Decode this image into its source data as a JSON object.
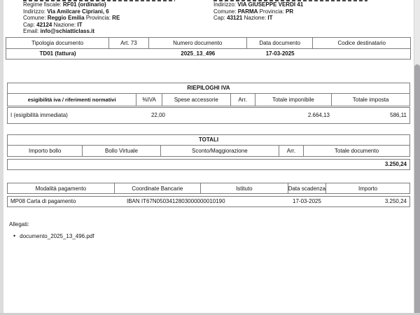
{
  "supplier": {
    "lines": [
      [
        {
          "t": "Regime fiscale: "
        },
        {
          "t": "RF01 (ordinario)",
          "b": true
        }
      ],
      [
        {
          "t": "Indirizzo: "
        },
        {
          "t": "Via Amilcare Cipriani, 6",
          "b": true
        }
      ],
      [
        {
          "t": "Comune: "
        },
        {
          "t": "Reggio Emilia",
          "b": true
        },
        {
          "t": " Provincia: "
        },
        {
          "t": "RE",
          "b": true
        }
      ],
      [
        {
          "t": "Cap: "
        },
        {
          "t": "42124",
          "b": true
        },
        {
          "t": " Nazione: "
        },
        {
          "t": "IT",
          "b": true
        }
      ],
      [
        {
          "t": "Email: "
        },
        {
          "t": "info@schiatticlass.it",
          "b": true
        }
      ]
    ]
  },
  "customer": {
    "lines": [
      [
        {
          "t": "Indirizzo: "
        },
        {
          "t": "VIA GIUSEPPE VERDI 41",
          "b": true
        }
      ],
      [
        {
          "t": "Comune: "
        },
        {
          "t": "PARMA",
          "b": true
        },
        {
          "t": " Provincia: "
        },
        {
          "t": "PR",
          "b": true
        }
      ],
      [
        {
          "t": "Cap: "
        },
        {
          "t": "43121",
          "b": true
        },
        {
          "t": " Nazione: "
        },
        {
          "t": "IT",
          "b": true
        }
      ]
    ]
  },
  "doc_table": {
    "headers": [
      "Tipologia documento",
      "Art. 73",
      "Numero documento",
      "Data documento",
      "Codice destinatario"
    ],
    "row": {
      "tipologia": "TD01 (fattura)",
      "numero": "2025_13_496",
      "data": "17-03-2025"
    }
  },
  "iva_table": {
    "title": "RIEPILOGHI IVA",
    "headers": [
      "esigibilità iva / riferimenti normativi",
      "%IVA",
      "Spese accessorie",
      "Arr.",
      "Totale imponibile",
      "Totale imposta"
    ],
    "row": {
      "esigibilita": "I (esigibilità immediata)",
      "perc_iva": "22,00",
      "imponibile": "2.664,13",
      "imposta": "586,11"
    }
  },
  "totali_table": {
    "title": "TOTALI",
    "headers": [
      "Importo bollo",
      "Bollo Virtuale",
      "Sconto/Maggiorazione",
      "Arr.",
      "Totale documento"
    ],
    "row": {
      "totale_documento": "3.250,24"
    }
  },
  "pagamento_table": {
    "headers": [
      "Modalità pagamento",
      "Coordinate Bancarie",
      "Istituto",
      "Data scadenza",
      "Importo"
    ],
    "row": {
      "modalita": "MP08 Carta di pagamento",
      "coordinate": "IBAN IT67N0503412803000000010190",
      "scadenza": "17-03-2025",
      "importo": "3.250,24"
    }
  },
  "allegati": {
    "label": "Allegati:",
    "items": [
      "documento_2025_13_496.pdf"
    ]
  },
  "colors": {
    "table_border": "#7d7d7d",
    "page": "#ffffff",
    "surround": "#dcdcdc",
    "scrollbar_thumb": "#a5a5aa"
  }
}
